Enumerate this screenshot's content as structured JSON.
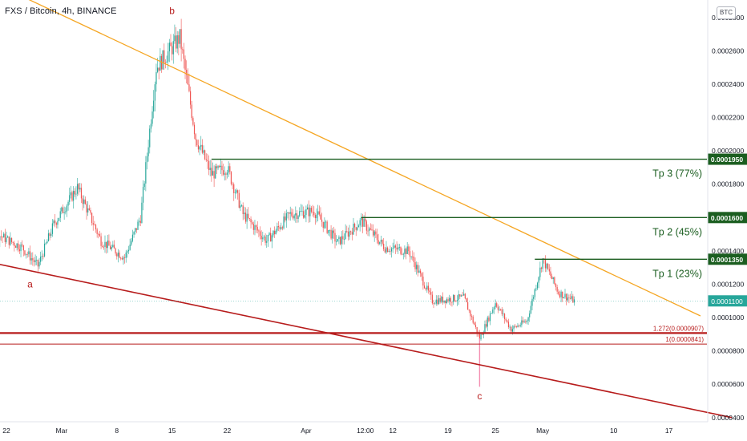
{
  "header": {
    "symbol_title": "FXS / Bitcoin, 4h, BINANCE",
    "currency_button": "BTC"
  },
  "colors": {
    "up_candle": "#26a69a",
    "down_candle": "#ef5350",
    "trendline_upper": "#f5a623",
    "trendline_lower": "#b71c1c",
    "target_line": "#1b5e20",
    "fib_line": "#b71c1c",
    "last_price": "#26a69a"
  },
  "chart_data": {
    "type": "candlestick",
    "y_axis": {
      "scale": "linear",
      "ylim": [
        3.75e-05,
        0.0002905
      ],
      "tick_labels": [
        "0.0002800",
        "0.0002600",
        "0.0002400",
        "0.0002200",
        "0.0002000",
        "0.0001800",
        "0.0001400",
        "0.0001200",
        "0.0001000",
        "0.0000800",
        "0.0000600",
        "0.0000400"
      ],
      "tick_values": [
        0.00028,
        0.00026,
        0.00024,
        0.00022,
        0.0002,
        0.00018,
        0.00014,
        0.00012,
        0.0001,
        8e-05,
        6e-05,
        4e-05
      ]
    },
    "x_axis": {
      "tick_labels": [
        "22",
        "Mar",
        "8",
        "15",
        "22",
        "Apr",
        "12:00",
        "12",
        "19",
        "25",
        "May",
        "10",
        "17"
      ],
      "tick_dates": [
        "2021-02-22",
        "2021-03-01",
        "2021-03-08",
        "2021-03-15",
        "2021-03-22",
        "2021-04-01",
        "2021-04-08 12:00",
        "2021-04-12",
        "2021-04-19",
        "2021-04-25",
        "2021-05-01",
        "2021-05-10",
        "2021-05-17"
      ]
    },
    "price_path": [
      {
        "date": "2021-02-16",
        "price": 0.000168
      },
      {
        "date": "2021-02-20",
        "price": 0.000152
      },
      {
        "date": "2021-02-24",
        "price": 0.000142
      },
      {
        "date": "2021-02-26",
        "price": 0.000131
      },
      {
        "date": "2021-02-28",
        "price": 0.000156
      },
      {
        "date": "2021-03-03",
        "price": 0.000178
      },
      {
        "date": "2021-03-06",
        "price": 0.000146
      },
      {
        "date": "2021-03-09",
        "price": 0.000136
      },
      {
        "date": "2021-03-11",
        "price": 0.00016
      },
      {
        "date": "2021-03-13",
        "price": 0.00025
      },
      {
        "date": "2021-03-16",
        "price": 0.000268
      },
      {
        "date": "2021-03-18",
        "price": 0.000208
      },
      {
        "date": "2021-03-20",
        "price": 0.000186
      },
      {
        "date": "2021-03-22",
        "price": 0.00019
      },
      {
        "date": "2021-03-24",
        "price": 0.000162
      },
      {
        "date": "2021-03-27",
        "price": 0.000146
      },
      {
        "date": "2021-03-30",
        "price": 0.000162
      },
      {
        "date": "2021-04-02",
        "price": 0.000164
      },
      {
        "date": "2021-04-05",
        "price": 0.000145
      },
      {
        "date": "2021-04-08",
        "price": 0.000158
      },
      {
        "date": "2021-04-11",
        "price": 0.000142
      },
      {
        "date": "2021-04-14",
        "price": 0.00014
      },
      {
        "date": "2021-04-17",
        "price": 0.00011
      },
      {
        "date": "2021-04-21",
        "price": 0.000112
      },
      {
        "date": "2021-04-23",
        "price": 8.75e-05
      },
      {
        "date": "2021-04-25",
        "price": 0.000109
      },
      {
        "date": "2021-04-27",
        "price": 9.3e-05
      },
      {
        "date": "2021-04-29",
        "price": 9.8e-05
      },
      {
        "date": "2021-05-01",
        "price": 0.000135
      },
      {
        "date": "2021-05-03",
        "price": 0.000115
      },
      {
        "date": "2021-05-05",
        "price": 0.00011
      }
    ],
    "wick_extremes": [
      {
        "date": "2021-04-23",
        "low": 5.85e-05
      }
    ],
    "trendlines": [
      {
        "name": "upper",
        "color": "trendline_upper",
        "points": [
          {
            "date": "2021-02-05",
            "price": 0.000335
          },
          {
            "date": "2021-05-21",
            "price": 0.000101
          }
        ]
      },
      {
        "name": "lower",
        "color": "trendline_lower",
        "points": [
          {
            "date": "2021-02-15",
            "price": 0.000138
          },
          {
            "date": "2021-05-25",
            "price": 4e-05
          }
        ]
      }
    ],
    "horizontal_levels": [
      {
        "label": "Tp 3 (77%)",
        "tag": "0.0001950",
        "price": 0.000195,
        "from": "2021-03-20"
      },
      {
        "label": "Tp 2 (45%)",
        "tag": "0.0001600",
        "price": 0.00016,
        "from": "2021-04-08"
      },
      {
        "label": "Tp 1 (23%)",
        "tag": "0.0001350",
        "price": 0.000135,
        "from": "2021-04-30"
      }
    ],
    "fib_levels": [
      {
        "label": "1.272(0.0000907)",
        "price": 9.07e-05,
        "from": "2021-02-19"
      },
      {
        "label": "1(0.0000841)",
        "price": 8.41e-05,
        "from": "2021-02-19"
      }
    ],
    "last_price": {
      "tag": "0.0001100",
      "price": 0.00011
    },
    "wave_labels": [
      {
        "text": "a",
        "date": "2021-02-25",
        "price": 0.000118
      },
      {
        "text": "b",
        "date": "2021-03-15",
        "price": 0.000282
      },
      {
        "text": "c",
        "date": "2021-04-23",
        "price": 5.1e-05
      }
    ]
  }
}
